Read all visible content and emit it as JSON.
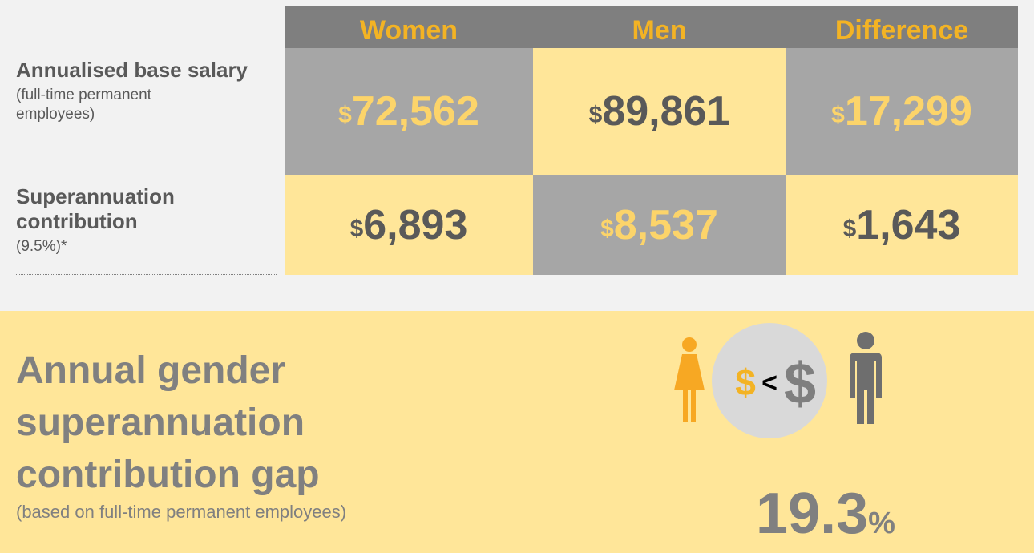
{
  "table": {
    "headers": [
      "Women",
      "Men",
      "Difference"
    ],
    "rows": [
      {
        "label": "Annualised base salary",
        "note": "(full-time permanent employees)",
        "cells": [
          {
            "currency": "$",
            "amount": "72,562"
          },
          {
            "currency": "$",
            "amount": "89,861"
          },
          {
            "currency": "$",
            "amount": "17,299"
          }
        ]
      },
      {
        "label": "Superannuation contribution",
        "note": "(9.5%)*",
        "cells": [
          {
            "currency": "$",
            "amount": "6,893"
          },
          {
            "currency": "$",
            "amount": "8,537"
          },
          {
            "currency": "$",
            "amount": "1,643"
          }
        ]
      }
    ]
  },
  "gap": {
    "title": "Annual gender superannuation contribution gap",
    "note": "(based on full-time permanent employees)",
    "icon": {
      "left": "$",
      "operator": "<",
      "right": "$"
    },
    "value": "19.3",
    "unit": "%"
  }
}
